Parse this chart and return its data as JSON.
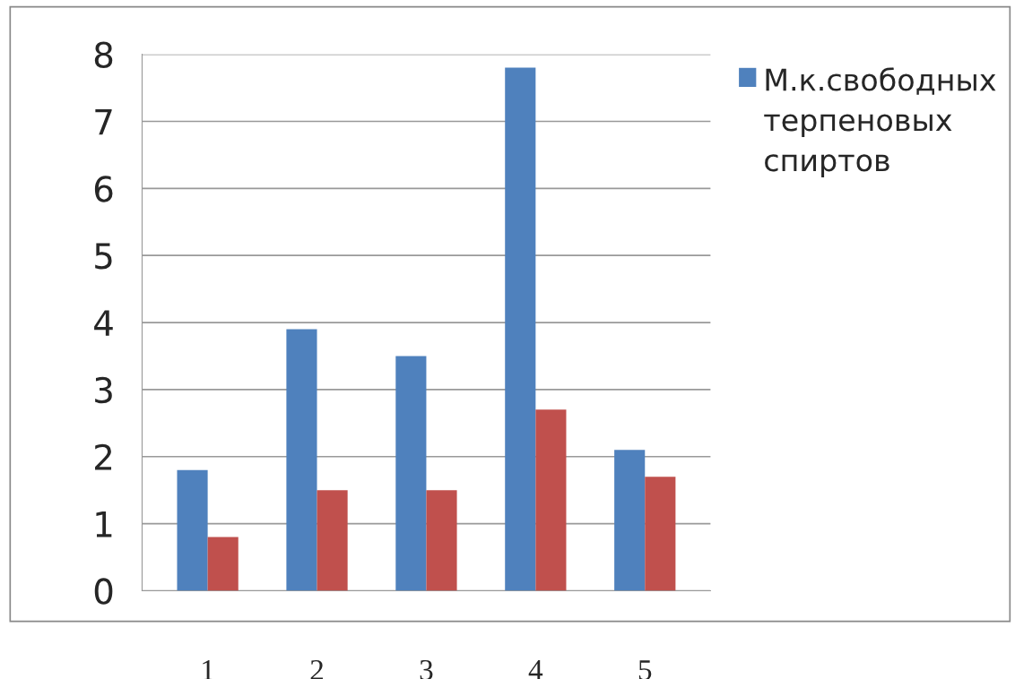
{
  "chart_data": {
    "type": "bar",
    "categories": [
      "1",
      "2",
      "3",
      "4",
      "5"
    ],
    "series": [
      {
        "name": "М.к.свободных терпеновых спиртов",
        "color": "#4f81bd",
        "values": [
          1.8,
          3.9,
          3.5,
          7.8,
          2.1
        ]
      },
      {
        "color": "#c0504d",
        "values": [
          0.8,
          1.5,
          1.5,
          2.7,
          1.7
        ]
      }
    ],
    "ylim": [
      0,
      8
    ],
    "yticks": [
      0,
      1,
      2,
      3,
      4,
      5,
      6,
      7,
      8
    ],
    "grid": "y",
    "legend": "top right"
  }
}
